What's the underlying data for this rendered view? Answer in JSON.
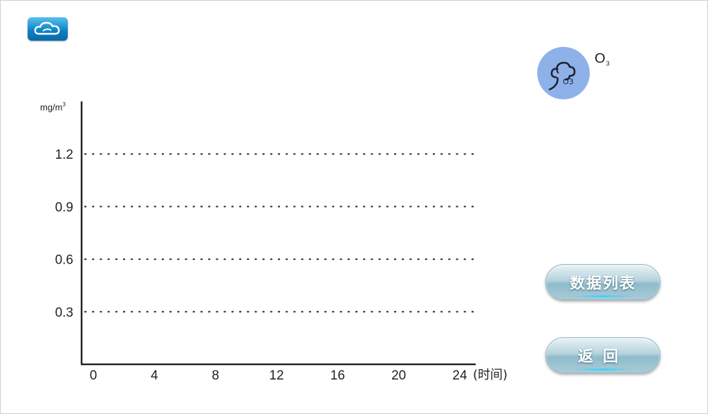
{
  "header": {
    "logo_icon": "cloud-logo-icon"
  },
  "pollutant": {
    "icon": "ozone-cloud-icon",
    "icon_label": "O3",
    "name_main": "O",
    "name_sub": "3",
    "circle_color": "#8fb1ea"
  },
  "chart_data": {
    "type": "line",
    "ylabel": "mg/m",
    "ylabel_superscript": "3",
    "xlabel": "(时间)",
    "x_ticks": [
      "0",
      "4",
      "8",
      "12",
      "16",
      "20",
      "24"
    ],
    "y_ticks": [
      "0.3",
      "0.6",
      "0.9",
      "1.2"
    ],
    "x_range": [
      0,
      24
    ],
    "y_range": [
      0,
      1.5
    ],
    "grid": "horizontal-dashed",
    "series": []
  },
  "buttons": {
    "data_list_label": "数据列表",
    "back_label": "返回"
  }
}
